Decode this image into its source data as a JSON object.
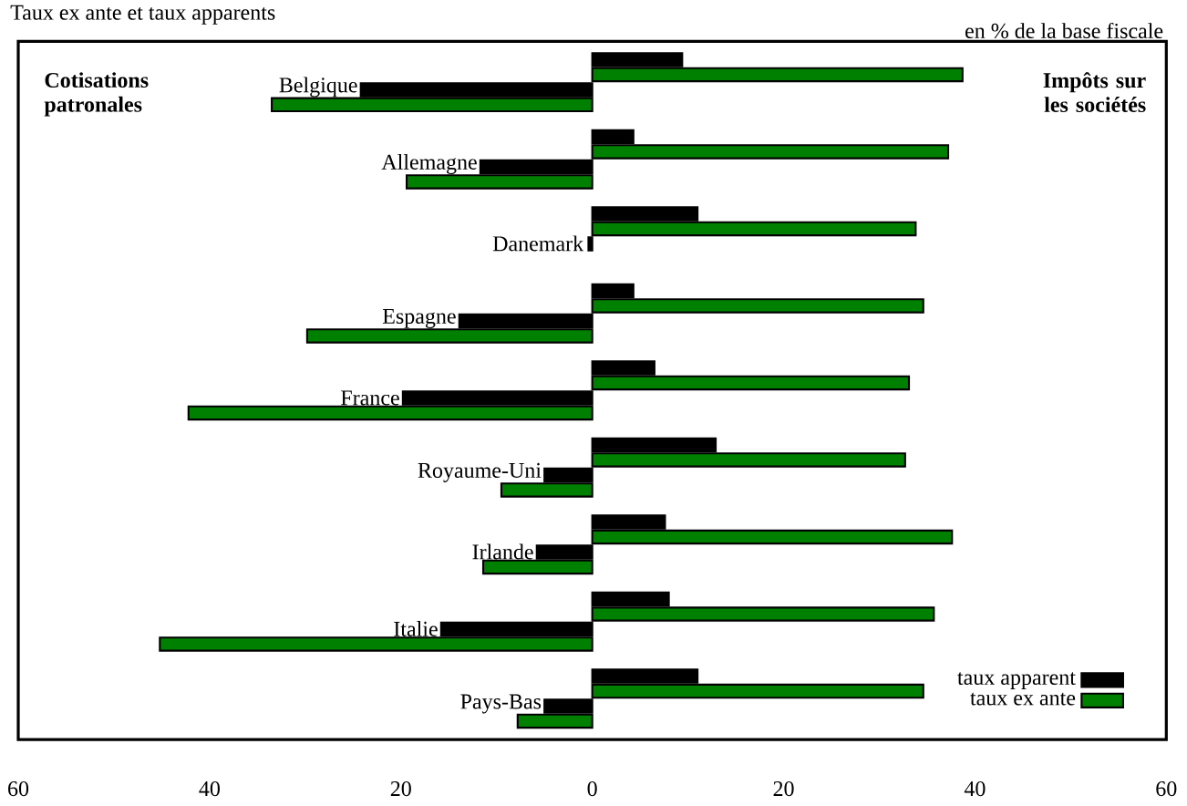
{
  "chart_data": {
    "type": "bar",
    "orientation": "horizontal",
    "title": "Taux ex ante et taux apparents",
    "categories": [
      "Belgique",
      "Allemagne",
      "Danemark",
      "Espagne",
      "France",
      "Royaume-Uni",
      "Irlande",
      "Italie",
      "Pays-Bas"
    ],
    "series": [
      {
        "name": "taux apparent",
        "color": "#000000",
        "values": [
          9.4,
          4.3,
          11.0,
          4.3,
          6.5,
          12.9,
          7.6,
          8.0,
          11.0
        ]
      },
      {
        "name": "taux ex ante",
        "color": "#008000",
        "values": [
          38.7,
          37.2,
          33.8,
          34.6,
          33.1,
          32.7,
          37.6,
          35.7,
          34.6
        ]
      },
      {
        "color": "#000000",
        "values": [
          -24.2,
          -11.7,
          -0.4,
          -13.9,
          -19.8,
          -5.0,
          -5.8,
          -15.8,
          -5.0
        ]
      },
      {
        "color": "#008000",
        "values": [
          -33.5,
          -19.4,
          null,
          -29.8,
          -42.2,
          -9.5,
          -11.4,
          -45.2,
          -7.8
        ]
      }
    ],
    "xlim": [
      -60,
      60
    ],
    "xticks": [
      {
        "value": -60,
        "label": "60"
      },
      {
        "value": -40,
        "label": "40"
      },
      {
        "value": -20,
        "label": "20"
      },
      0,
      20,
      40,
      60
    ],
    "annotations": [
      "**Cotisations patronales**",
      "**Impôts sur les sociétés**",
      "en % de la base fiscale"
    ],
    "legend": "bottom right",
    "grid": false
  }
}
